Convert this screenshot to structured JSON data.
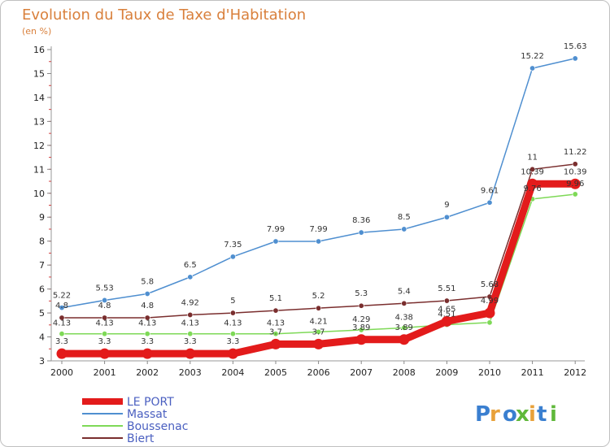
{
  "chart_data": {
    "type": "line",
    "title": "Evolution du Taux de Taxe d'Habitation",
    "subtitle": "(en %)",
    "xlabel": "",
    "ylabel": "",
    "x": [
      "2000",
      "2001",
      "2002",
      "2003",
      "2004",
      "2005",
      "2006",
      "2007",
      "2008",
      "2009",
      "2010",
      "2011",
      "2012"
    ],
    "ylim": [
      3,
      16
    ],
    "yticks": [
      3,
      4,
      5,
      6,
      7,
      8,
      9,
      10,
      11,
      12,
      13,
      14,
      15,
      16
    ],
    "legend_position": "bottom-left",
    "series": [
      {
        "name": "LE PORT",
        "color": "#e31b1b",
        "values": [
          3.3,
          3.3,
          3.3,
          3.3,
          3.3,
          3.7,
          3.7,
          3.89,
          3.89,
          4.65,
          5.0,
          10.39,
          10.39
        ],
        "labels": [
          "3.3",
          "3.3",
          "3.3",
          "3.3",
          "3.3",
          "3.7",
          "3.7",
          "3.89",
          "3.89",
          "4.65",
          "4.99",
          "10.39",
          "10.39"
        ]
      },
      {
        "name": "Massat",
        "color": "#4f8fd0",
        "values": [
          5.22,
          5.53,
          5.8,
          6.5,
          7.35,
          7.99,
          7.99,
          8.36,
          8.5,
          9,
          9.61,
          15.22,
          15.63
        ],
        "labels": [
          "5.22",
          "5.53",
          "5.8",
          "6.5",
          "7.35",
          "7.99",
          "7.99",
          "8.36",
          "8.5",
          "9",
          "9.61",
          "15.22",
          "15.63"
        ]
      },
      {
        "name": "Boussenac",
        "color": "#7ed957",
        "values": [
          4.13,
          4.13,
          4.13,
          4.13,
          4.13,
          4.13,
          4.21,
          4.29,
          4.38,
          4.51,
          4.6,
          9.76,
          9.96
        ],
        "labels": [
          "4.13",
          "4.13",
          "4.13",
          "4.13",
          "4.13",
          "4.13",
          "4.21",
          "4.29",
          "4.38",
          "4.51",
          "",
          "9.76",
          "9.96"
        ]
      },
      {
        "name": "Biert",
        "color": "#7a2e2e",
        "values": [
          4.8,
          4.8,
          4.8,
          4.92,
          5,
          5.1,
          5.2,
          5.3,
          5.4,
          5.51,
          5.68,
          11,
          11.22
        ],
        "labels": [
          "4.8",
          "4.8",
          "4.8",
          "4.92",
          "5",
          "5.1",
          "5.2",
          "5.3",
          "5.4",
          "5.51",
          "5.68",
          "11",
          "11.22"
        ]
      }
    ]
  },
  "logo": {
    "text": "Proxiti",
    "letters": [
      {
        "ch": "P",
        "color": "#3a7fd0"
      },
      {
        "ch": "r",
        "color": "#e8a13a"
      },
      {
        "ch": "o",
        "color": "#3a7fd0"
      },
      {
        "ch": "x",
        "color": "#5fb83a"
      },
      {
        "ch": "i",
        "color": "#e8a13a"
      },
      {
        "ch": "t",
        "color": "#3a7fd0"
      },
      {
        "ch": "i",
        "color": "#5fb83a"
      }
    ]
  }
}
